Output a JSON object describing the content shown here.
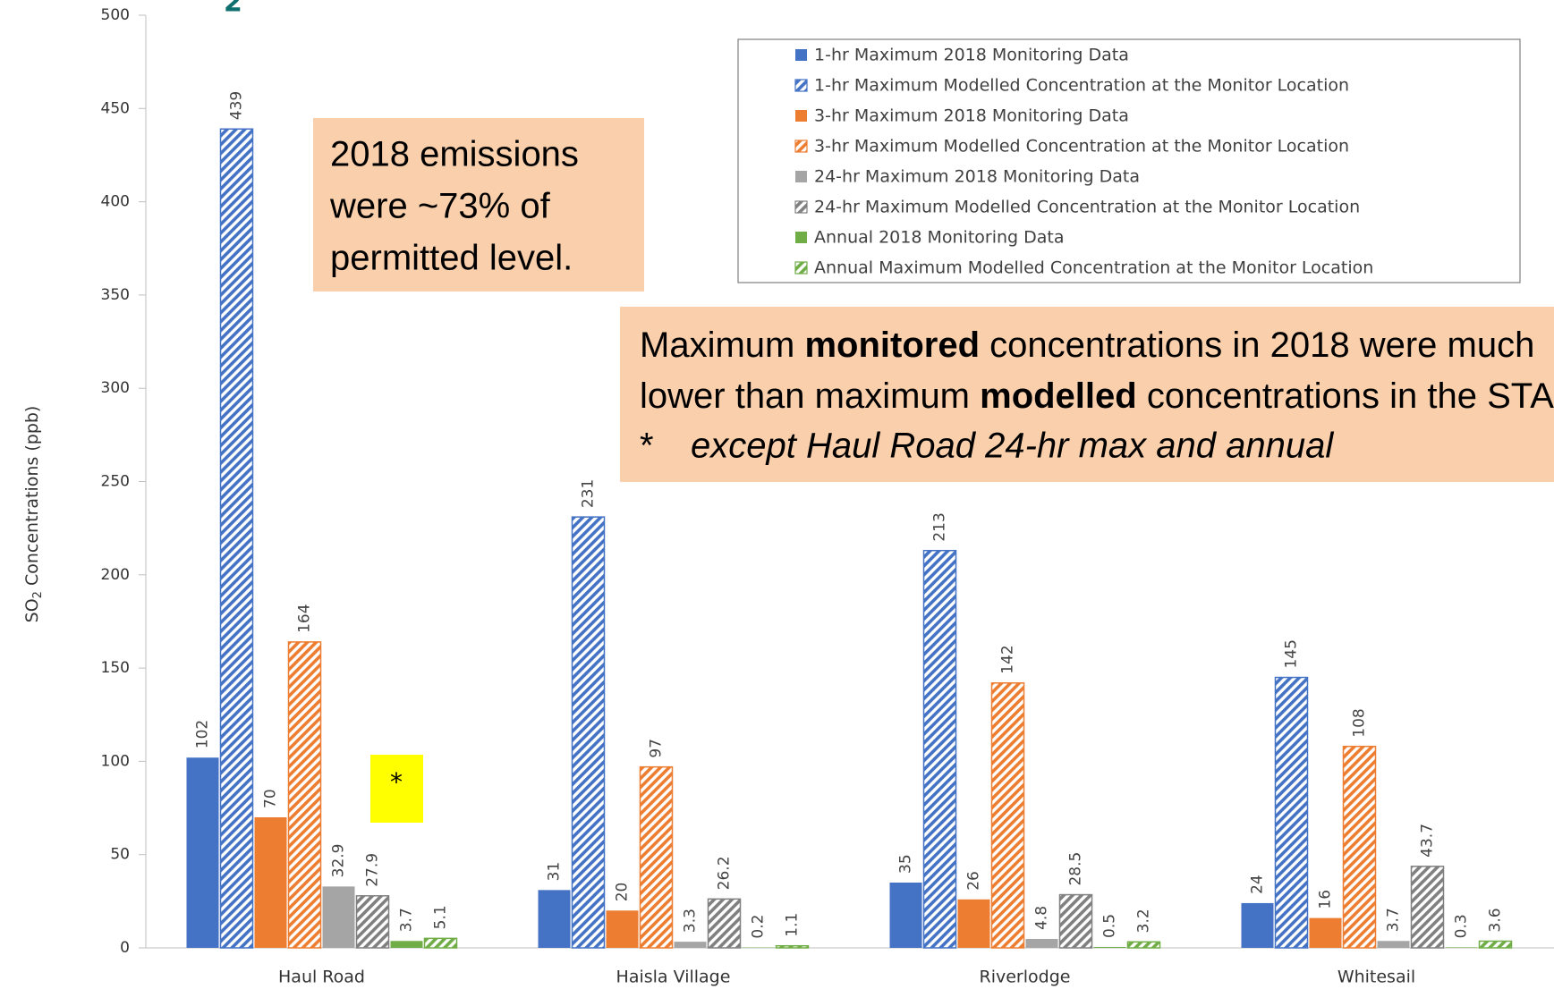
{
  "chart_data": {
    "type": "bar",
    "title_fragment": "2",
    "y_label": {
      "main": "SO",
      "sub": "2",
      "rest": " Concentrations (ppb)"
    },
    "categories": [
      "Haul Road",
      "Haisla Village",
      "Riverlodge",
      "Whitesail"
    ],
    "series": [
      {
        "name": "1-hr Maximum 2018 Monitoring Data",
        "color": "#4472c4",
        "hatched": false,
        "values": [
          102,
          31,
          35,
          24
        ]
      },
      {
        "name": "1-hr Maximum Modelled Concentration at the Monitor Location",
        "color": "#4472c4",
        "hatched": true,
        "values": [
          439,
          231,
          213,
          145
        ]
      },
      {
        "name": "3-hr Maximum 2018 Monitoring Data",
        "color": "#ed7d31",
        "hatched": false,
        "values": [
          70,
          20,
          26,
          16
        ]
      },
      {
        "name": "3-hr Maximum Modelled Concentration at the Monitor Location",
        "color": "#ed7d31",
        "hatched": true,
        "values": [
          164,
          97,
          142,
          108
        ]
      },
      {
        "name": "24-hr Maximum 2018 Monitoring Data",
        "color": "#a5a5a5",
        "hatched": false,
        "values": [
          32.9,
          3.3,
          4.8,
          3.7
        ]
      },
      {
        "name": "24-hr Maximum Modelled Concentration at the Monitor Location",
        "color": "#808080",
        "hatched": true,
        "values": [
          27.9,
          26.2,
          28.5,
          43.7
        ]
      },
      {
        "name": "Annual 2018 Monitoring Data",
        "color": "#70ad47",
        "hatched": false,
        "values": [
          3.7,
          0.2,
          0.5,
          0.3
        ]
      },
      {
        "name": "Annual Maximum Modelled Concentration at the Monitor Location",
        "color": "#70ad47",
        "hatched": true,
        "values": [
          5.1,
          1.1,
          3.2,
          3.6
        ]
      }
    ],
    "ylim": [
      0,
      500
    ],
    "yticks": [
      0,
      50,
      100,
      150,
      200,
      250,
      300,
      350,
      400,
      450,
      500
    ],
    "annotations": {
      "emissions": [
        "2018 emissions",
        "were ~73% of",
        "permitted level."
      ],
      "summary": [
        [
          {
            "text": "Maximum ",
            "bold": false
          },
          {
            "text": "monitored",
            "bold": true
          },
          {
            "text": " concentrations in 2018 were much",
            "bold": false
          }
        ],
        [
          {
            "text": "lower than maximum ",
            "bold": false
          },
          {
            "text": "modelled",
            "bold": true
          },
          {
            "text": " concentrations in the STAR",
            "bold": false
          }
        ]
      ],
      "exception_marker": "*",
      "exception": "except Haul Road 24-hr max and annual",
      "star": "*"
    }
  }
}
